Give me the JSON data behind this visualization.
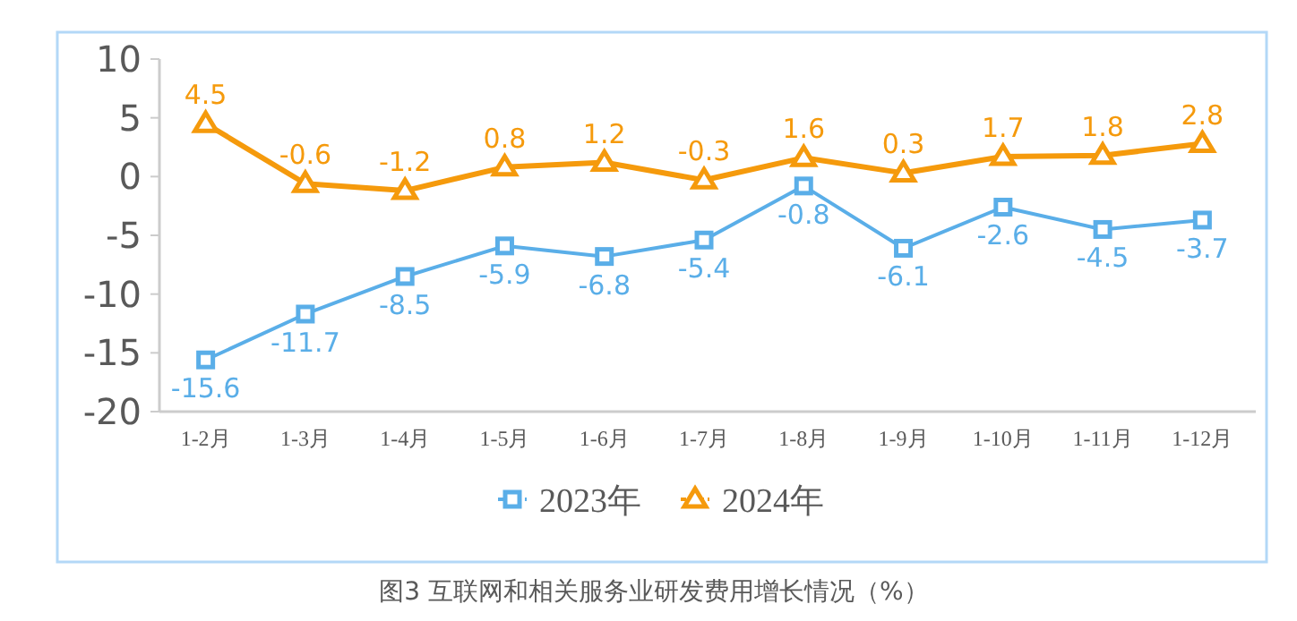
{
  "chart_data": {
    "type": "line",
    "title": "图3  互联网和相关服务业研发费用增长情况（%）",
    "categories": [
      "1-2月",
      "1-3月",
      "1-4月",
      "1-5月",
      "1-6月",
      "1-7月",
      "1-8月",
      "1-9月",
      "1-10月",
      "1-11月",
      "1-12月"
    ],
    "series": [
      {
        "name": "2023年",
        "color": "#5aaee8",
        "marker": "square",
        "values": [
          -15.6,
          -11.7,
          -8.5,
          -5.9,
          -6.8,
          -5.4,
          -0.8,
          -6.1,
          -2.6,
          -4.5,
          -3.7
        ]
      },
      {
        "name": "2024年",
        "color": "#f59a0c",
        "marker": "triangle",
        "values": [
          4.5,
          -0.6,
          -1.2,
          0.8,
          1.2,
          -0.3,
          1.6,
          0.3,
          1.7,
          1.8,
          2.8
        ]
      }
    ],
    "ylim": [
      -20,
      10
    ],
    "yticks": [
      10,
      5,
      0,
      -5,
      -10,
      -15,
      -20
    ],
    "data_labels": true,
    "legend": "bottom",
    "grid": false
  }
}
